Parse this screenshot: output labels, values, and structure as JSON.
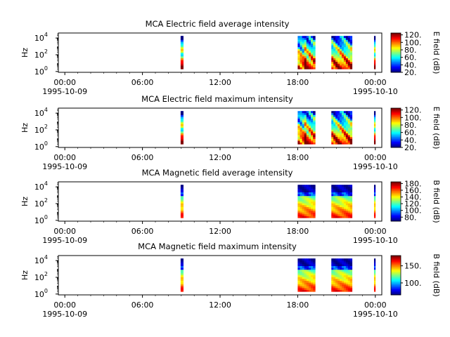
{
  "chart_data": [
    {
      "type": "heatmap",
      "title": "MCA  Electric field average intensity",
      "ylabel": "Hz",
      "y_scale": "log",
      "y_ticks": [
        {
          "base": "10",
          "exp": "0"
        },
        {
          "base": "10",
          "exp": "2"
        },
        {
          "base": "10",
          "exp": "4"
        }
      ],
      "x_ticks": [
        {
          "hour": 0,
          "time": "00:00",
          "date": "1995-10-09"
        },
        {
          "hour": 6,
          "time": "06:00",
          "date": ""
        },
        {
          "hour": 12,
          "time": "12:00",
          "date": ""
        },
        {
          "hour": 18,
          "time": "18:00",
          "date": ""
        },
        {
          "hour": 24,
          "time": "00:00",
          "date": "1995-10-10"
        }
      ],
      "x_range_hours": [
        -0.5,
        24.5
      ],
      "colorbar": {
        "label": "E field (dB)",
        "ticks": [
          "20.",
          "40.",
          "60.",
          "80.",
          "100.",
          "120."
        ],
        "range": [
          20,
          125
        ]
      },
      "data_intervals_hours": [
        [
          8.95,
          9.15
        ],
        [
          18.0,
          19.35
        ],
        [
          20.6,
          22.2
        ],
        [
          23.9,
          24.0
        ]
      ]
    },
    {
      "type": "heatmap",
      "title": "MCA  Electric field maximum intensity",
      "ylabel": "Hz",
      "y_scale": "log",
      "y_ticks": [
        {
          "base": "10",
          "exp": "0"
        },
        {
          "base": "10",
          "exp": "2"
        },
        {
          "base": "10",
          "exp": "4"
        }
      ],
      "x_ticks": [
        {
          "hour": 0,
          "time": "00:00",
          "date": "1995-10-09"
        },
        {
          "hour": 6,
          "time": "06:00",
          "date": ""
        },
        {
          "hour": 12,
          "time": "12:00",
          "date": ""
        },
        {
          "hour": 18,
          "time": "18:00",
          "date": ""
        },
        {
          "hour": 24,
          "time": "00:00",
          "date": "1995-10-10"
        }
      ],
      "x_range_hours": [
        -0.5,
        24.5
      ],
      "colorbar": {
        "label": "E field (dB)",
        "ticks": [
          "20.",
          "40.",
          "60.",
          "80.",
          "100.",
          "120."
        ],
        "range": [
          20,
          125
        ]
      },
      "data_intervals_hours": [
        [
          8.95,
          9.15
        ],
        [
          18.0,
          19.35
        ],
        [
          20.6,
          22.2
        ],
        [
          23.9,
          24.0
        ]
      ]
    },
    {
      "type": "heatmap",
      "title": "MCA  Magnetic field average intensity",
      "ylabel": "Hz",
      "y_scale": "log",
      "y_ticks": [
        {
          "base": "10",
          "exp": "0"
        },
        {
          "base": "10",
          "exp": "2"
        },
        {
          "base": "10",
          "exp": "4"
        }
      ],
      "x_ticks": [
        {
          "hour": 0,
          "time": "00:00",
          "date": "1995-10-09"
        },
        {
          "hour": 6,
          "time": "06:00",
          "date": ""
        },
        {
          "hour": 12,
          "time": "12:00",
          "date": ""
        },
        {
          "hour": 18,
          "time": "18:00",
          "date": ""
        },
        {
          "hour": 24,
          "time": "00:00",
          "date": "1995-10-10"
        }
      ],
      "x_range_hours": [
        -0.5,
        24.5
      ],
      "colorbar": {
        "label": "B field (dB)",
        "ticks": [
          "80.",
          "100.",
          "120.",
          "140.",
          "160.",
          "180."
        ],
        "range": [
          68,
          185
        ]
      },
      "data_intervals_hours": [
        [
          8.95,
          9.15
        ],
        [
          18.0,
          19.35
        ],
        [
          20.6,
          22.2
        ],
        [
          23.9,
          24.0
        ]
      ]
    },
    {
      "type": "heatmap",
      "title": "MCA  Magnetic field maximum intensity",
      "ylabel": "Hz",
      "y_scale": "log",
      "y_ticks": [
        {
          "base": "10",
          "exp": "0"
        },
        {
          "base": "10",
          "exp": "2"
        },
        {
          "base": "10",
          "exp": "4"
        }
      ],
      "x_ticks": [
        {
          "hour": 0,
          "time": "00:00",
          "date": "1995-10-09"
        },
        {
          "hour": 6,
          "time": "06:00",
          "date": ""
        },
        {
          "hour": 12,
          "time": "12:00",
          "date": ""
        },
        {
          "hour": 18,
          "time": "18:00",
          "date": ""
        },
        {
          "hour": 24,
          "time": "00:00",
          "date": "1995-10-10"
        }
      ],
      "x_range_hours": [
        -0.5,
        24.5
      ],
      "colorbar": {
        "label": "B field (dB)",
        "ticks": [
          "100.",
          "150."
        ],
        "range": [
          65,
          180
        ]
      },
      "data_intervals_hours": [
        [
          8.95,
          9.15
        ],
        [
          18.0,
          19.35
        ],
        [
          20.6,
          22.2
        ],
        [
          23.9,
          24.0
        ]
      ]
    }
  ]
}
